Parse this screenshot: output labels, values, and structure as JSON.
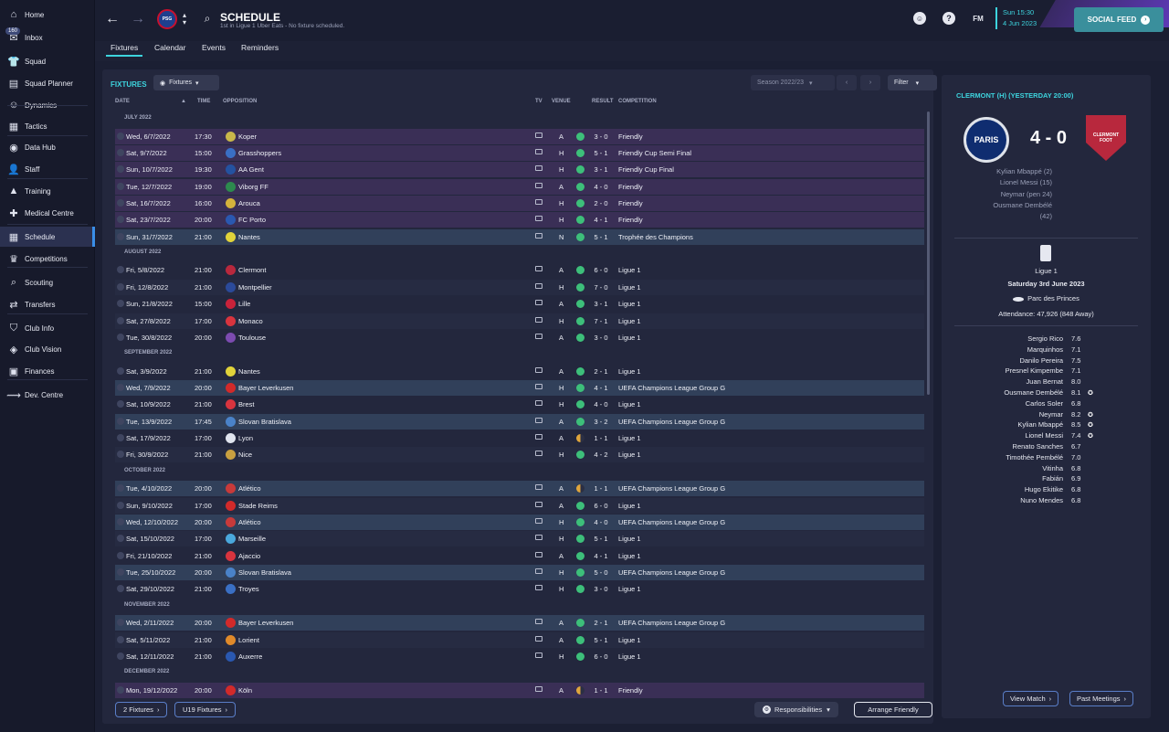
{
  "sidebar": {
    "inbox_badge": "160",
    "items": [
      {
        "label": "Home",
        "icon": "home-icon",
        "glyph": "⌂"
      },
      {
        "label": "Inbox",
        "icon": "inbox-icon",
        "glyph": "✉"
      },
      {
        "label": "Squad",
        "icon": "shirt-icon",
        "glyph": "👕"
      },
      {
        "label": "Squad Planner",
        "icon": "planner-icon",
        "glyph": "▤"
      },
      {
        "label": "Dynamics",
        "icon": "dynamics-icon",
        "glyph": "☺"
      },
      {
        "label": "Tactics",
        "icon": "tactics-icon",
        "glyph": "▦"
      },
      {
        "label": "Data Hub",
        "icon": "data-hub-icon",
        "glyph": "◉"
      },
      {
        "label": "Staff",
        "icon": "staff-icon",
        "glyph": "👤"
      },
      {
        "label": "Training",
        "icon": "training-icon",
        "glyph": "▲"
      },
      {
        "label": "Medical Centre",
        "icon": "medical-icon",
        "glyph": "✚"
      },
      {
        "label": "Schedule",
        "icon": "calendar-icon",
        "glyph": "▦"
      },
      {
        "label": "Competitions",
        "icon": "trophy-icon",
        "glyph": "♛"
      },
      {
        "label": "Scouting",
        "icon": "scouting-icon",
        "glyph": "⌕"
      },
      {
        "label": "Transfers",
        "icon": "transfers-icon",
        "glyph": "⇄"
      },
      {
        "label": "Club Info",
        "icon": "club-info-icon",
        "glyph": "⛉"
      },
      {
        "label": "Club Vision",
        "icon": "vision-icon",
        "glyph": "◈"
      },
      {
        "label": "Finances",
        "icon": "finances-icon",
        "glyph": "▣"
      },
      {
        "label": "Dev. Centre",
        "icon": "dev-centre-icon",
        "glyph": "⟿"
      }
    ]
  },
  "header": {
    "title": "SCHEDULE",
    "subtitle": "1st in Ligue 1 Uber Eats - No fixture scheduled.",
    "club_crest_text": "PSG",
    "fm_label": "FM",
    "date_day": "Sun 15:30",
    "date_full": "4 Jun 2023",
    "social_feed": "SOCIAL FEED",
    "tabs": [
      "Fixtures",
      "Calendar",
      "Events",
      "Reminders"
    ]
  },
  "main": {
    "section_label": "FIXTURES",
    "view_dropdown": "Fixtures",
    "season": "Season 2022/23",
    "filter": "Filter",
    "columns": {
      "date": "DATE",
      "time": "TIME",
      "opposition": "OPPOSITION",
      "tv": "TV",
      "venue": "VENUE",
      "result": "RESULT",
      "competition": "COMPETITION"
    },
    "months": [
      "JULY 2022",
      "AUGUST 2022",
      "SEPTEMBER 2022",
      "OCTOBER 2022",
      "NOVEMBER 2022",
      "DECEMBER 2022"
    ],
    "fixtures": [
      {
        "date": "Wed, 6/7/2022",
        "time": "17:30",
        "opp": "Koper",
        "venue": "A",
        "score": "3 - 0",
        "comp": "Friendly",
        "style": "purple",
        "res": "win",
        "crest": "#c8b84a"
      },
      {
        "date": "Sat, 9/7/2022",
        "time": "15:00",
        "opp": "Grasshoppers",
        "venue": "H",
        "score": "5 - 1",
        "comp": "Friendly Cup Semi Final",
        "style": "purple",
        "res": "win",
        "crest": "#3a6fc4"
      },
      {
        "date": "Sun, 10/7/2022",
        "time": "19:30",
        "opp": "AA Gent",
        "venue": "H",
        "score": "3 - 1",
        "comp": "Friendly Cup Final",
        "style": "purple",
        "res": "win",
        "crest": "#2452a0"
      },
      {
        "date": "Tue, 12/7/2022",
        "time": "19:00",
        "opp": "Viborg FF",
        "venue": "A",
        "score": "4 - 0",
        "comp": "Friendly",
        "style": "purple",
        "res": "win",
        "crest": "#2d8a4e"
      },
      {
        "date": "Sat, 16/7/2022",
        "time": "16:00",
        "opp": "Arouca",
        "venue": "H",
        "score": "2 - 0",
        "comp": "Friendly",
        "style": "purple",
        "res": "win",
        "crest": "#d4b33c"
      },
      {
        "date": "Sat, 23/7/2022",
        "time": "20:00",
        "opp": "FC Porto",
        "venue": "H",
        "score": "4 - 1",
        "comp": "Friendly",
        "style": "purple",
        "res": "win",
        "crest": "#2a58b0"
      },
      {
        "date": "Sun, 31/7/2022",
        "time": "21:00",
        "opp": "Nantes",
        "venue": "N",
        "score": "5 - 1",
        "comp": "Trophée des Champions",
        "style": "blue",
        "res": "win",
        "crest": "#e1d33a"
      },
      {
        "date": "Fri, 5/8/2022",
        "time": "21:00",
        "opp": "Clermont",
        "venue": "A",
        "score": "6 - 0",
        "comp": "Ligue 1",
        "style": "plain",
        "res": "win",
        "crest": "#b8283d"
      },
      {
        "date": "Fri, 12/8/2022",
        "time": "21:00",
        "opp": "Montpellier",
        "venue": "H",
        "score": "7 - 0",
        "comp": "Ligue 1",
        "style": "plain",
        "res": "win",
        "crest": "#2b4a9a"
      },
      {
        "date": "Sun, 21/8/2022",
        "time": "15:00",
        "opp": "Lille",
        "venue": "A",
        "score": "3 - 1",
        "comp": "Ligue 1",
        "style": "plain",
        "res": "win",
        "crest": "#c8223a"
      },
      {
        "date": "Sat, 27/8/2022",
        "time": "17:00",
        "opp": "Monaco",
        "venue": "H",
        "score": "7 - 1",
        "comp": "Ligue 1",
        "style": "plain",
        "res": "win",
        "crest": "#d8343e"
      },
      {
        "date": "Tue, 30/8/2022",
        "time": "20:00",
        "opp": "Toulouse",
        "venue": "A",
        "score": "3 - 0",
        "comp": "Ligue 1",
        "style": "plain",
        "res": "win",
        "crest": "#7c4bb0"
      },
      {
        "date": "Sat, 3/9/2022",
        "time": "21:00",
        "opp": "Nantes",
        "venue": "A",
        "score": "2 - 1",
        "comp": "Ligue 1",
        "style": "plain",
        "res": "win",
        "crest": "#e1d33a"
      },
      {
        "date": "Wed, 7/9/2022",
        "time": "20:00",
        "opp": "Bayer Leverkusen",
        "venue": "H",
        "score": "4 - 1",
        "comp": "UEFA Champions League Group G",
        "style": "blue",
        "res": "win",
        "crest": "#d22a2a"
      },
      {
        "date": "Sat, 10/9/2022",
        "time": "21:00",
        "opp": "Brest",
        "venue": "H",
        "score": "4 - 0",
        "comp": "Ligue 1",
        "style": "plain",
        "res": "win",
        "crest": "#d8343e"
      },
      {
        "date": "Tue, 13/9/2022",
        "time": "17:45",
        "opp": "Slovan Bratislava",
        "venue": "A",
        "score": "3 - 2",
        "comp": "UEFA Champions League Group G",
        "style": "blue",
        "res": "win",
        "crest": "#4a82c8"
      },
      {
        "date": "Sat, 17/9/2022",
        "time": "17:00",
        "opp": "Lyon",
        "venue": "A",
        "score": "1 - 1",
        "comp": "Ligue 1",
        "style": "plain",
        "res": "draw",
        "crest": "#e0e4ee"
      },
      {
        "date": "Fri, 30/9/2022",
        "time": "21:00",
        "opp": "Nice",
        "venue": "H",
        "score": "4 - 2",
        "comp": "Ligue 1",
        "style": "plain",
        "res": "win",
        "crest": "#c8a040"
      },
      {
        "date": "Tue, 4/10/2022",
        "time": "20:00",
        "opp": "Atlético",
        "venue": "A",
        "score": "1 - 1",
        "comp": "UEFA Champions League Group G",
        "style": "blue",
        "res": "draw",
        "crest": "#c83a3a"
      },
      {
        "date": "Sun, 9/10/2022",
        "time": "17:00",
        "opp": "Stade Reims",
        "venue": "A",
        "score": "6 - 0",
        "comp": "Ligue 1",
        "style": "plain",
        "res": "win",
        "crest": "#d22a2a"
      },
      {
        "date": "Wed, 12/10/2022",
        "time": "20:00",
        "opp": "Atlético",
        "venue": "H",
        "score": "4 - 0",
        "comp": "UEFA Champions League Group G",
        "style": "blue",
        "res": "win",
        "crest": "#c83a3a"
      },
      {
        "date": "Sat, 15/10/2022",
        "time": "17:00",
        "opp": "Marseille",
        "venue": "H",
        "score": "5 - 1",
        "comp": "Ligue 1",
        "style": "plain",
        "res": "win",
        "crest": "#4aa8dc"
      },
      {
        "date": "Fri, 21/10/2022",
        "time": "21:00",
        "opp": "Ajaccio",
        "venue": "A",
        "score": "4 - 1",
        "comp": "Ligue 1",
        "style": "plain",
        "res": "win",
        "crest": "#d8343e"
      },
      {
        "date": "Tue, 25/10/2022",
        "time": "20:00",
        "opp": "Slovan Bratislava",
        "venue": "H",
        "score": "5 - 0",
        "comp": "UEFA Champions League Group G",
        "style": "blue",
        "res": "win",
        "crest": "#4a82c8"
      },
      {
        "date": "Sat, 29/10/2022",
        "time": "21:00",
        "opp": "Troyes",
        "venue": "H",
        "score": "3 - 0",
        "comp": "Ligue 1",
        "style": "plain",
        "res": "win",
        "crest": "#3a6fc4"
      },
      {
        "date": "Wed, 2/11/2022",
        "time": "20:00",
        "opp": "Bayer Leverkusen",
        "venue": "A",
        "score": "2 - 1",
        "comp": "UEFA Champions League Group G",
        "style": "blue",
        "res": "win",
        "crest": "#d22a2a"
      },
      {
        "date": "Sat, 5/11/2022",
        "time": "21:00",
        "opp": "Lorient",
        "venue": "A",
        "score": "5 - 1",
        "comp": "Ligue 1",
        "style": "plain",
        "res": "win",
        "crest": "#e08a2a"
      },
      {
        "date": "Sat, 12/11/2022",
        "time": "21:00",
        "opp": "Auxerre",
        "venue": "H",
        "score": "6 - 0",
        "comp": "Ligue 1",
        "style": "plain",
        "res": "win",
        "crest": "#2a58b0"
      },
      {
        "date": "Mon, 19/12/2022",
        "time": "20:00",
        "opp": "Köln",
        "venue": "A",
        "score": "1 - 1",
        "comp": "Friendly",
        "style": "purple",
        "res": "draw",
        "crest": "#d22a2a"
      }
    ],
    "footer": {
      "fixtures_btn": "2 Fixtures",
      "u19_btn": "U19 Fixtures",
      "responsibilities": "Responsibilities",
      "arrange": "Arrange Friendly"
    }
  },
  "panel": {
    "title": "CLERMONT (H) (YESTERDAY 20:00)",
    "home_crest_text": "PARIS",
    "away_crest_text": "CLERMONT FOOT",
    "score": "4 - 0",
    "scorers": [
      "Kylian Mbappé (2)",
      "Lionel Messi (15)",
      "Neymar (pen 24)",
      "Ousmane Dembélé",
      "(42)"
    ],
    "competition": "Ligue 1",
    "match_date": "Saturday 3rd June 2023",
    "stadium": "Parc des Princes",
    "attendance": "Attendance: 47,926 (848 Away)",
    "ratings": [
      {
        "name": "Sergio Rico",
        "r": "7.6",
        "star": false
      },
      {
        "name": "Marquinhos",
        "r": "7.1",
        "star": false
      },
      {
        "name": "Danilo Pereira",
        "r": "7.5",
        "star": false
      },
      {
        "name": "Presnel Kimpembe",
        "r": "7.1",
        "star": false
      },
      {
        "name": "Juan Bernat",
        "r": "8.0",
        "star": false
      },
      {
        "name": "Ousmane Dembélé",
        "r": "8.1",
        "star": true
      },
      {
        "name": "Carlos Soler",
        "r": "6.8",
        "star": false
      },
      {
        "name": "Neymar",
        "r": "8.2",
        "star": true
      },
      {
        "name": "Kylian Mbappé",
        "r": "8.5",
        "star": true
      },
      {
        "name": "Lionel Messi",
        "r": "7.4",
        "star": true
      },
      {
        "name": "Renato Sanches",
        "r": "6.7",
        "star": false
      },
      {
        "name": "Timothée Pembélé",
        "r": "7.0",
        "star": false
      },
      {
        "name": "Vitinha",
        "r": "6.8",
        "star": false
      },
      {
        "name": "Fabián",
        "r": "6.9",
        "star": false
      },
      {
        "name": "Hugo Ekitike",
        "r": "6.8",
        "star": false
      },
      {
        "name": "Nuno Mendes",
        "r": "6.8",
        "star": false
      }
    ],
    "view_match": "View Match",
    "past_meetings": "Past Meetings"
  },
  "colors": {
    "accent": "#3dd4de",
    "win": "#3dbf7a",
    "draw": "#e0a63c"
  }
}
